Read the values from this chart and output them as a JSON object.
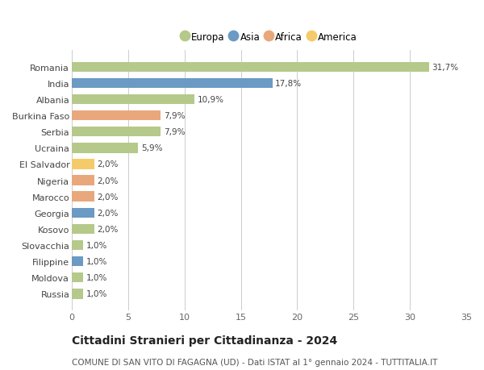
{
  "countries": [
    "Romania",
    "India",
    "Albania",
    "Burkina Faso",
    "Serbia",
    "Ucraina",
    "El Salvador",
    "Nigeria",
    "Marocco",
    "Georgia",
    "Kosovo",
    "Slovacchia",
    "Filippine",
    "Moldova",
    "Russia"
  ],
  "values": [
    31.7,
    17.8,
    10.9,
    7.9,
    7.9,
    5.9,
    2.0,
    2.0,
    2.0,
    2.0,
    2.0,
    1.0,
    1.0,
    1.0,
    1.0
  ],
  "labels": [
    "31,7%",
    "17,8%",
    "10,9%",
    "7,9%",
    "7,9%",
    "5,9%",
    "2,0%",
    "2,0%",
    "2,0%",
    "2,0%",
    "2,0%",
    "1,0%",
    "1,0%",
    "1,0%",
    "1,0%"
  ],
  "continents": [
    "Europa",
    "Asia",
    "Europa",
    "Africa",
    "Europa",
    "Europa",
    "America",
    "Africa",
    "Africa",
    "Asia",
    "Europa",
    "Europa",
    "Asia",
    "Europa",
    "Europa"
  ],
  "colors": {
    "Europa": "#b5c98a",
    "Asia": "#6b9ac4",
    "Africa": "#e8a87c",
    "America": "#f5cb6a"
  },
  "legend_order": [
    "Europa",
    "Asia",
    "Africa",
    "America"
  ],
  "title": "Cittadini Stranieri per Cittadinanza - 2024",
  "subtitle": "COMUNE DI SAN VITO DI FAGAGNA (UD) - Dati ISTAT al 1° gennaio 2024 - TUTTITALIA.IT",
  "xlim": [
    0,
    35
  ],
  "xticks": [
    0,
    5,
    10,
    15,
    20,
    25,
    30,
    35
  ],
  "background_color": "#ffffff",
  "bar_background": "#ffffff",
  "grid_color": "#cccccc",
  "label_fontsize": 7.5,
  "tick_fontsize": 8,
  "title_fontsize": 10,
  "subtitle_fontsize": 7.5
}
